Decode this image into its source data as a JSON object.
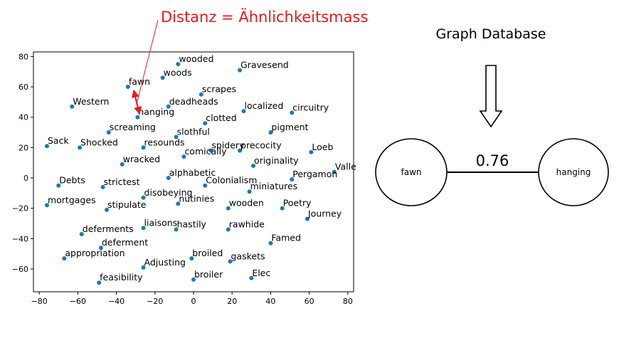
{
  "annotation": {
    "text": "Distanz = Ähnlichkeitsmass",
    "color": "#e8191a"
  },
  "graph": {
    "title": "Graph Database",
    "node_a": "fawn",
    "node_b": "hanging",
    "edge_weight": "0.76"
  },
  "chart_data": {
    "type": "scatter",
    "title": "",
    "xlabel": "",
    "ylabel": "",
    "xlim": [
      -83,
      83
    ],
    "ylim": [
      -75,
      83
    ],
    "xticks": [
      -80,
      -60,
      -40,
      -20,
      0,
      20,
      40,
      60,
      80
    ],
    "yticks": [
      -60,
      -40,
      -20,
      0,
      20,
      40,
      60,
      80
    ],
    "grid": false,
    "point_color": "#1f77b4",
    "points": [
      {
        "label": "wooded",
        "x": -8,
        "y": 75
      },
      {
        "label": "Gravesend",
        "x": 24,
        "y": 71
      },
      {
        "label": "woods",
        "x": -16,
        "y": 66
      },
      {
        "label": "fawn",
        "x": -34,
        "y": 60
      },
      {
        "label": "scrapes",
        "x": 4,
        "y": 55
      },
      {
        "label": "Western",
        "x": -63,
        "y": 47
      },
      {
        "label": "deadheads",
        "x": -13,
        "y": 47
      },
      {
        "label": "localized",
        "x": 26,
        "y": 44
      },
      {
        "label": "circuitry",
        "x": 51,
        "y": 43
      },
      {
        "label": "hanging",
        "x": -29,
        "y": 40
      },
      {
        "label": "clotted",
        "x": 6,
        "y": 36
      },
      {
        "label": "screaming",
        "x": -44,
        "y": 30
      },
      {
        "label": "pigment",
        "x": 40,
        "y": 30
      },
      {
        "label": "slothful",
        "x": -9,
        "y": 27
      },
      {
        "label": "Sack",
        "x": -76,
        "y": 21
      },
      {
        "label": "Shocked",
        "x": -59,
        "y": 20
      },
      {
        "label": "resounds",
        "x": -26,
        "y": 20
      },
      {
        "label": "spidery",
        "x": 9,
        "y": 18
      },
      {
        "label": "precocity",
        "x": 24,
        "y": 18
      },
      {
        "label": "Loeb",
        "x": 61,
        "y": 17
      },
      {
        "label": "comically",
        "x": -5,
        "y": 14
      },
      {
        "label": "wracked",
        "x": -37,
        "y": 9
      },
      {
        "label": "originality",
        "x": 31,
        "y": 8
      },
      {
        "label": "Valle",
        "x": 73,
        "y": 4
      },
      {
        "label": "alphabetic",
        "x": -13,
        "y": 0
      },
      {
        "label": "Pergamon",
        "x": 51,
        "y": -1
      },
      {
        "label": "Debts",
        "x": -70,
        "y": -5
      },
      {
        "label": "strictest",
        "x": -47,
        "y": -6
      },
      {
        "label": "Colonialism",
        "x": 6,
        "y": -5
      },
      {
        "label": "miniatures",
        "x": 29,
        "y": -9
      },
      {
        "label": "disobeying",
        "x": -26,
        "y": -13
      },
      {
        "label": "nutinies",
        "x": -8,
        "y": -17
      },
      {
        "label": "mortgages",
        "x": -76,
        "y": -18
      },
      {
        "label": "stipulate",
        "x": -45,
        "y": -21
      },
      {
        "label": "wooden",
        "x": 18,
        "y": -20
      },
      {
        "label": "Poetry",
        "x": 46,
        "y": -20
      },
      {
        "label": "Journey",
        "x": 59,
        "y": -27
      },
      {
        "label": "liaisons",
        "x": -26,
        "y": -33
      },
      {
        "label": "hastily",
        "x": -9,
        "y": -34
      },
      {
        "label": "rawhide",
        "x": 18,
        "y": -34
      },
      {
        "label": "deferments",
        "x": -58,
        "y": -37
      },
      {
        "label": "Famed",
        "x": 40,
        "y": -43
      },
      {
        "label": "deferment",
        "x": -48,
        "y": -46
      },
      {
        "label": "appropriation",
        "x": -67,
        "y": -53
      },
      {
        "label": "broiled",
        "x": -1,
        "y": -53
      },
      {
        "label": "gaskets",
        "x": 19,
        "y": -55
      },
      {
        "label": "Adjusting",
        "x": -26,
        "y": -59
      },
      {
        "label": "broiler",
        "x": 0,
        "y": -67
      },
      {
        "label": "Elec",
        "x": 30,
        "y": -66
      },
      {
        "label": "feasibility",
        "x": -49,
        "y": -69
      }
    ]
  }
}
